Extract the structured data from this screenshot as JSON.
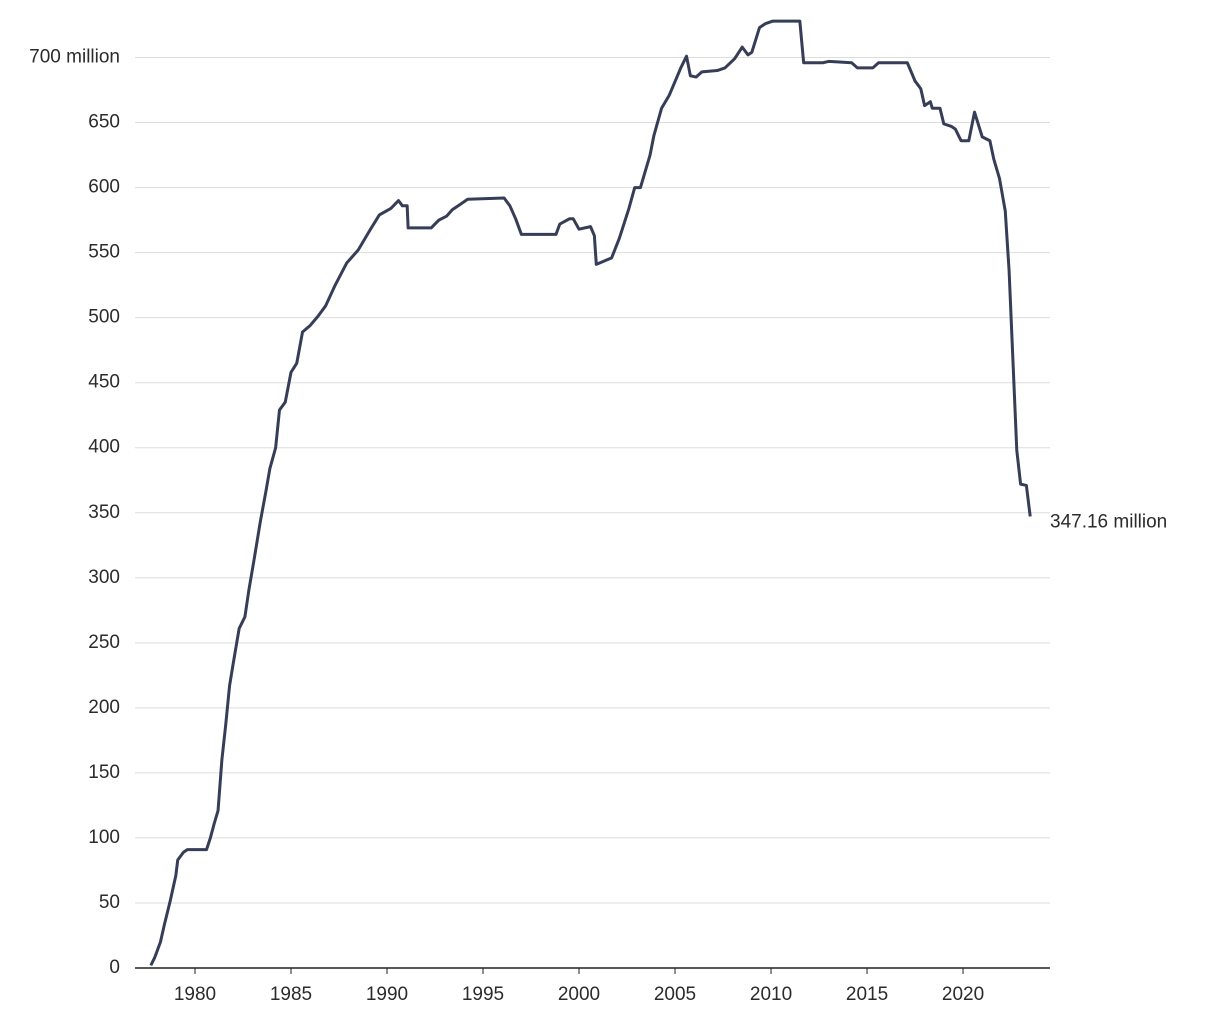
{
  "chart_data": {
    "type": "line",
    "x": [
      1977.7,
      1977.9,
      1978.2,
      1978.4,
      1978.7,
      1979.0,
      1979.1,
      1979.4,
      1979.6,
      1980.6,
      1980.8,
      1981.0,
      1981.2,
      1981.4,
      1981.6,
      1981.8,
      1982.0,
      1982.3,
      1982.6,
      1982.8,
      1983.1,
      1983.4,
      1983.7,
      1983.9,
      1984.2,
      1984.4,
      1984.7,
      1985.0,
      1985.3,
      1985.6,
      1986.0,
      1986.4,
      1986.8,
      1987.3,
      1987.9,
      1988.5,
      1989.1,
      1989.6,
      1990.2,
      1990.6,
      1990.8,
      1991.05,
      1991.1,
      1992.3,
      1992.7,
      1993.1,
      1993.4,
      1993.9,
      1994.2,
      1996.1,
      1996.4,
      1996.7,
      1997.0,
      1998.8,
      1999.0,
      1999.5,
      1999.7,
      2000.0,
      2000.6,
      2000.8,
      2000.9,
      2001.7,
      2002.1,
      2002.6,
      2002.9,
      2003.2,
      2003.7,
      2003.9,
      2004.3,
      2004.7,
      2005.3,
      2005.6,
      2005.8,
      2006.1,
      2006.4,
      2007.2,
      2007.6,
      2008.1,
      2008.5,
      2008.8,
      2009.0,
      2009.4,
      2009.7,
      2010.1,
      2011.5,
      2011.7,
      2012.7,
      2013.0,
      2014.2,
      2014.5,
      2015.3,
      2015.6,
      2017.1,
      2017.5,
      2017.8,
      2018.0,
      2018.3,
      2018.4,
      2018.8,
      2019.0,
      2019.4,
      2019.6,
      2019.9,
      2020.3,
      2020.6,
      2021.0,
      2021.4,
      2021.6,
      2021.9,
      2022.2,
      2022.4,
      2022.6,
      2022.8,
      2023.0,
      2023.3,
      2023.5
    ],
    "values": [
      2,
      8,
      20,
      33,
      51,
      71,
      83,
      89,
      91,
      91,
      100,
      111,
      121,
      160,
      187,
      217,
      235,
      261,
      270,
      290,
      316,
      343,
      367,
      384,
      400,
      429,
      435,
      458,
      465,
      489,
      494,
      501,
      509,
      525,
      542,
      552,
      567,
      579,
      584,
      590,
      586,
      586,
      569,
      569,
      575,
      578,
      583,
      588,
      591,
      592,
      586,
      576,
      564,
      564,
      572,
      576,
      576,
      568,
      570,
      563,
      541,
      546,
      561,
      584,
      600,
      600,
      625,
      640,
      661,
      671,
      692,
      701,
      686,
      685,
      689,
      690,
      692,
      699,
      708,
      702,
      704,
      723,
      726,
      728,
      728,
      696,
      696,
      697,
      696,
      692,
      692,
      696,
      696,
      682,
      676,
      663,
      666,
      661,
      661,
      649,
      647,
      645,
      636,
      636,
      658,
      639,
      636,
      622,
      607,
      582,
      536,
      467,
      398,
      372,
      371,
      347.16
    ],
    "value_labels": [
      null,
      null,
      null,
      null,
      null,
      null,
      null,
      null,
      null,
      null,
      null,
      null,
      null,
      null,
      null,
      null,
      null,
      null,
      null,
      null,
      null,
      null,
      null,
      null,
      null,
      null,
      null,
      null,
      null,
      null,
      null,
      null,
      null,
      null,
      null,
      null,
      null,
      null,
      null,
      null,
      null,
      null,
      null,
      null,
      null,
      null,
      null,
      null,
      null,
      null,
      null,
      null,
      null,
      null,
      null,
      null,
      null,
      null,
      null,
      null,
      null,
      null,
      null,
      null,
      null,
      null,
      null,
      null,
      null,
      null,
      null,
      null,
      null,
      null,
      null,
      null,
      null,
      null,
      null,
      null,
      null,
      null,
      null,
      null,
      null,
      null,
      null,
      null,
      null,
      null,
      null,
      null,
      null,
      null,
      null,
      null,
      null,
      null,
      null,
      null,
      null,
      null,
      null,
      null,
      null,
      null,
      null,
      null,
      null,
      null,
      null,
      null,
      null,
      null,
      null,
      "347.16 million"
    ],
    "color": "#363e57",
    "xlim": [
      1976.875,
      2024.53
    ],
    "xticks": [
      1980,
      1985,
      1990,
      1995,
      2000,
      2005,
      2010,
      2015,
      2020
    ],
    "ylim": [
      0,
      735
    ],
    "yticks": [
      0,
      50,
      100,
      150,
      200,
      250,
      300,
      350,
      400,
      450,
      500,
      550,
      600,
      650,
      {
        "value": 700,
        "label": "700 million"
      }
    ],
    "grid": true
  }
}
